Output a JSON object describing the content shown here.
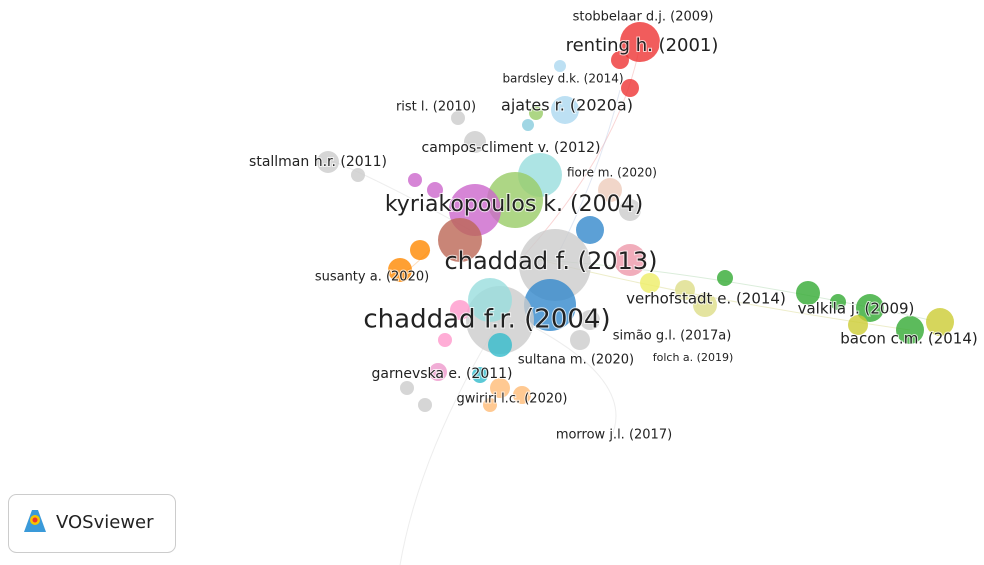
{
  "nodes": [
    {
      "label": "stobbelaar d.j. (2009)"
    },
    {
      "label": "renting h. (2001)"
    },
    {
      "label": "bardsley d.k. (2014)"
    },
    {
      "label": "rist l. (2010)"
    },
    {
      "label": "ajates r. (2020a)"
    },
    {
      "label": "campos-climent v. (2012)"
    },
    {
      "label": "stallman h.r. (2011)"
    },
    {
      "label": "fiore m. (2020)"
    },
    {
      "label": "kyriakopoulos k. (2004)"
    },
    {
      "label": "chaddad f. (2013)"
    },
    {
      "label": "susanty a. (2020)"
    },
    {
      "label": "verhofstadt e. (2014)"
    },
    {
      "label": "valkila j. (2009)"
    },
    {
      "label": "chaddad f.r. (2004)"
    },
    {
      "label": "simão g.l. (2017a)"
    },
    {
      "label": "bacon c.m. (2014)"
    },
    {
      "label": "sultana m. (2020)"
    },
    {
      "label": "folch a. (2019)"
    },
    {
      "label": "garnevska e. (2011)"
    },
    {
      "label": "gwiriri l.c. (2020)"
    },
    {
      "label": "morrow j.l. (2017)"
    }
  ],
  "branding": {
    "name": "VOSviewer"
  }
}
